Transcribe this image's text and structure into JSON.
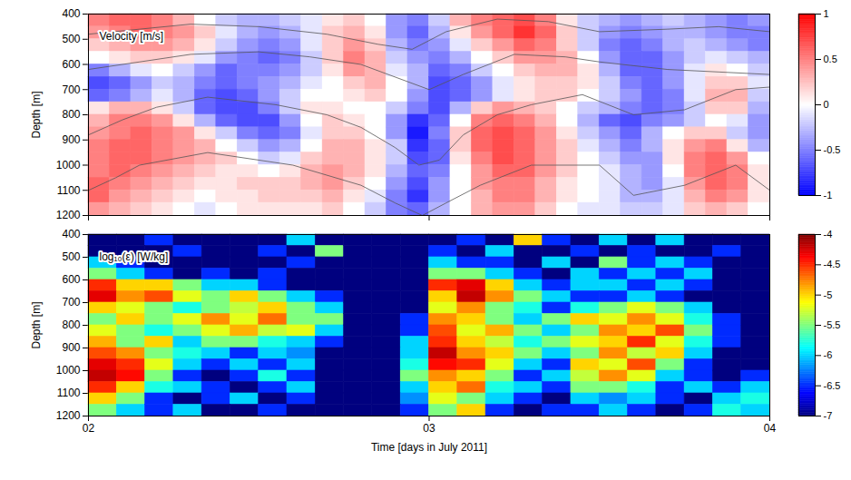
{
  "chart_data": [
    {
      "type": "heatmap",
      "title": "Velocity [m/s]",
      "y_label": "Depth [m]",
      "xlim": [
        2,
        4
      ],
      "xticks": [
        {
          "value": 2,
          "label": "02"
        },
        {
          "value": 3,
          "label": "03"
        },
        {
          "value": 4,
          "label": "04"
        }
      ],
      "ylim": [
        400,
        1200
      ],
      "yticks": [
        400,
        500,
        600,
        700,
        800,
        900,
        1000,
        1100,
        1200
      ],
      "tick_labels": "y",
      "x_edges": [
        2,
        2.0625,
        2.125,
        2.1875,
        2.25,
        2.3125,
        2.375,
        2.4375,
        2.5,
        2.5625,
        2.625,
        2.6875,
        2.75,
        2.8125,
        2.875,
        2.9375,
        3,
        3.0625,
        3.125,
        3.1875,
        3.25,
        3.3125,
        3.375,
        3.4375,
        3.5,
        3.5625,
        3.625,
        3.6875,
        3.75,
        3.8125,
        3.875,
        3.9375,
        4
      ],
      "y_edges": [
        400,
        450,
        500,
        550,
        600,
        650,
        700,
        750,
        800,
        850,
        900,
        950,
        1000,
        1050,
        1100,
        1150,
        1200
      ],
      "values": [
        [
          0.5,
          0.6,
          0.6,
          0.5,
          0.3,
          0.0,
          -0.2,
          -0.3,
          -0.3,
          -0.2,
          -0.1,
          0.1,
          0.2,
          0.0,
          -0.4,
          -0.5,
          -0.2,
          0.3,
          0.5,
          0.6,
          0.7,
          0.5,
          0.1,
          -0.2,
          -0.3,
          -0.4,
          -0.3,
          -0.2,
          -0.3,
          -0.4,
          -0.5,
          -0.4
        ],
        [
          0.4,
          0.5,
          0.6,
          0.5,
          0.4,
          0.2,
          -0.1,
          -0.3,
          -0.4,
          -0.3,
          -0.1,
          0.2,
          0.3,
          0.1,
          -0.4,
          -0.6,
          -0.3,
          0.1,
          0.4,
          0.6,
          0.8,
          0.6,
          0.2,
          -0.2,
          -0.4,
          -0.5,
          -0.4,
          -0.3,
          -0.3,
          -0.4,
          -0.5,
          -0.5
        ],
        [
          0.2,
          0.3,
          0.4,
          0.4,
          0.3,
          0.1,
          -0.2,
          -0.4,
          -0.5,
          -0.4,
          -0.1,
          0.2,
          0.4,
          0.2,
          -0.3,
          -0.5,
          -0.4,
          -0.1,
          0.2,
          0.4,
          0.6,
          0.5,
          0.2,
          -0.2,
          -0.5,
          -0.6,
          -0.5,
          -0.3,
          -0.2,
          -0.3,
          -0.4,
          -0.5
        ],
        [
          0.0,
          0.1,
          0.2,
          0.2,
          0.1,
          -0.1,
          -0.4,
          -0.5,
          -0.6,
          -0.5,
          -0.2,
          0.2,
          0.5,
          0.3,
          -0.2,
          -0.4,
          -0.5,
          -0.3,
          0.0,
          0.2,
          0.4,
          0.4,
          0.3,
          0.0,
          -0.4,
          -0.6,
          -0.6,
          -0.4,
          -0.2,
          -0.1,
          -0.2,
          -0.3
        ],
        [
          -0.5,
          -0.3,
          -0.1,
          0.0,
          -0.2,
          -0.4,
          -0.6,
          -0.5,
          -0.5,
          -0.4,
          -0.2,
          0.1,
          0.4,
          0.3,
          -0.1,
          -0.3,
          -0.6,
          -0.5,
          -0.2,
          0.0,
          0.2,
          0.3,
          0.3,
          0.1,
          -0.3,
          -0.6,
          -0.6,
          -0.4,
          -0.1,
          0.1,
          0.0,
          -0.2
        ],
        [
          -0.7,
          -0.6,
          -0.4,
          -0.2,
          -0.3,
          -0.5,
          -0.6,
          -0.5,
          -0.4,
          -0.3,
          -0.1,
          0.0,
          0.2,
          0.3,
          0.0,
          -0.3,
          -0.7,
          -0.6,
          -0.4,
          -0.1,
          0.1,
          0.2,
          0.2,
          0.1,
          -0.2,
          -0.5,
          -0.6,
          -0.4,
          -0.1,
          0.2,
          0.2,
          -0.1
        ],
        [
          -0.6,
          -0.5,
          -0.3,
          -0.1,
          -0.3,
          -0.6,
          -0.7,
          -0.6,
          -0.4,
          -0.2,
          0.0,
          0.0,
          0.1,
          0.2,
          0.0,
          -0.4,
          -0.7,
          -0.6,
          -0.4,
          -0.1,
          0.1,
          0.2,
          0.2,
          0.0,
          -0.2,
          -0.4,
          -0.6,
          -0.5,
          -0.1,
          0.3,
          0.3,
          -0.2
        ],
        [
          0.1,
          0.3,
          0.3,
          0.1,
          -0.2,
          -0.6,
          -0.7,
          -0.7,
          -0.5,
          -0.2,
          0.1,
          0.1,
          0.0,
          0.0,
          -0.2,
          -0.5,
          -0.7,
          -0.3,
          0.2,
          0.4,
          0.3,
          0.2,
          0.0,
          -0.2,
          -0.3,
          -0.5,
          -0.6,
          -0.5,
          -0.2,
          0.2,
          0.2,
          -0.3
        ],
        [
          0.3,
          0.5,
          0.5,
          0.4,
          0.1,
          -0.3,
          -0.6,
          -0.7,
          -0.7,
          -0.4,
          0.0,
          0.2,
          0.1,
          0.0,
          -0.4,
          -0.8,
          -0.6,
          0.0,
          0.5,
          0.6,
          0.5,
          0.3,
          0.0,
          -0.3,
          -0.6,
          -0.7,
          -0.5,
          -0.4,
          -0.2,
          0.0,
          -0.1,
          -0.4
        ],
        [
          0.4,
          0.5,
          0.6,
          0.5,
          0.4,
          0.1,
          -0.2,
          -0.5,
          -0.6,
          -0.5,
          -0.1,
          0.2,
          0.2,
          0.0,
          -0.4,
          -0.9,
          -0.5,
          0.2,
          0.6,
          0.7,
          0.6,
          0.4,
          0.1,
          -0.2,
          -0.4,
          -0.6,
          -0.3,
          0.0,
          0.2,
          0.2,
          -0.2,
          -0.4
        ],
        [
          0.5,
          0.6,
          0.6,
          0.5,
          0.4,
          0.3,
          0.0,
          -0.2,
          -0.4,
          -0.3,
          0.0,
          0.3,
          0.3,
          0.1,
          -0.2,
          -0.8,
          -0.6,
          0.2,
          0.6,
          0.7,
          0.6,
          0.4,
          0.2,
          -0.1,
          -0.3,
          -0.5,
          -0.3,
          0.1,
          0.4,
          0.5,
          0.1,
          -0.3
        ],
        [
          0.5,
          0.6,
          0.6,
          0.5,
          0.4,
          0.3,
          0.2,
          0.0,
          -0.2,
          -0.1,
          0.2,
          0.3,
          0.3,
          0.1,
          -0.2,
          -0.7,
          -0.6,
          0.1,
          0.5,
          0.7,
          0.6,
          0.4,
          0.2,
          0.0,
          -0.2,
          -0.4,
          -0.4,
          0.1,
          0.5,
          0.6,
          0.4,
          0.0
        ],
        [
          0.5,
          0.6,
          0.5,
          0.4,
          0.3,
          0.2,
          0.1,
          0.1,
          0.0,
          0.1,
          0.3,
          0.4,
          0.3,
          0.1,
          -0.3,
          -0.6,
          -0.5,
          0.0,
          0.4,
          0.6,
          0.6,
          0.4,
          0.2,
          0.0,
          -0.1,
          -0.3,
          -0.4,
          0.0,
          0.5,
          0.6,
          0.5,
          0.1
        ],
        [
          0.6,
          0.5,
          0.4,
          0.3,
          0.2,
          0.1,
          0.1,
          0.2,
          0.2,
          0.2,
          0.3,
          0.4,
          0.2,
          0.0,
          -0.4,
          -0.7,
          -0.4,
          0.0,
          0.4,
          0.5,
          0.5,
          0.3,
          0.1,
          0.0,
          -0.1,
          -0.3,
          -0.4,
          -0.1,
          0.4,
          0.6,
          0.5,
          0.1
        ],
        [
          0.6,
          0.4,
          0.3,
          0.2,
          0.1,
          0.0,
          0.1,
          0.1,
          0.2,
          0.2,
          0.2,
          0.3,
          0.1,
          -0.1,
          -0.5,
          -0.8,
          -0.4,
          0.0,
          0.3,
          0.5,
          0.5,
          0.3,
          0.1,
          0.0,
          -0.1,
          -0.3,
          -0.3,
          -0.1,
          0.3,
          0.5,
          0.4,
          0.1
        ],
        [
          0.4,
          0.3,
          0.2,
          0.1,
          0.0,
          -0.1,
          0.0,
          0.1,
          0.1,
          0.1,
          0.1,
          0.2,
          0.0,
          -0.2,
          -0.5,
          -0.6,
          -0.3,
          0.0,
          0.3,
          0.4,
          0.4,
          0.2,
          0.0,
          -0.1,
          -0.1,
          -0.2,
          -0.2,
          -0.1,
          0.2,
          0.3,
          0.2,
          0.0
        ]
      ],
      "colorbar": {
        "range": [
          -1,
          1
        ],
        "ticks": [
          -1,
          -0.5,
          0,
          0.5,
          1
        ]
      },
      "contours": [
        {
          "x": [
            2,
            2.15,
            2.3,
            2.5,
            2.7,
            2.85,
            2.95,
            3.05,
            3.2,
            3.35,
            3.5,
            3.7,
            3.85,
            4
          ],
          "y": [
            480,
            460,
            440,
            450,
            480,
            520,
            540,
            470,
            420,
            430,
            470,
            460,
            450,
            470
          ]
        },
        {
          "x": [
            2,
            2.15,
            2.3,
            2.5,
            2.65,
            2.8,
            2.92,
            3,
            3.1,
            3.25,
            3.4,
            3.5,
            3.7,
            3.85,
            4
          ],
          "y": [
            620,
            590,
            560,
            550,
            570,
            600,
            660,
            700,
            640,
            560,
            570,
            590,
            620,
            630,
            640
          ]
        },
        {
          "x": [
            2,
            2.1,
            2.2,
            2.35,
            2.55,
            2.7,
            2.8,
            2.9,
            2.97,
            3.03,
            3.1,
            3.2,
            3.3,
            3.45,
            3.6,
            3.75,
            3.9,
            4
          ],
          "y": [
            880,
            820,
            770,
            730,
            760,
            800,
            850,
            930,
            1000,
            980,
            880,
            800,
            760,
            720,
            800,
            780,
            700,
            690
          ]
        },
        {
          "x": [
            2,
            2.08,
            2.15,
            2.35,
            2.6,
            2.8,
            2.9,
            2.98,
            3.05,
            3.15,
            3.3,
            3.5,
            3.6,
            3.75,
            3.9,
            4
          ],
          "y": [
            1100,
            1050,
            1000,
            950,
            1000,
            1080,
            1150,
            1200,
            1150,
            1080,
            1000,
            1000,
            1120,
            1080,
            1000,
            1100
          ]
        }
      ]
    },
    {
      "type": "heatmap",
      "title": "log₁₀(ε) [W/kg]",
      "x_label": "Time [days in July 2011]",
      "y_label": "Depth [m]",
      "xlim": [
        2,
        4
      ],
      "xticks": [
        {
          "value": 2,
          "label": "02"
        },
        {
          "value": 3,
          "label": "03"
        },
        {
          "value": 4,
          "label": "04"
        }
      ],
      "ylim": [
        400,
        1200
      ],
      "yticks": [
        400,
        500,
        600,
        700,
        800,
        900,
        1000,
        1100,
        1200
      ],
      "x_edges": [
        2,
        2.0833,
        2.1667,
        2.25,
        2.3333,
        2.4167,
        2.5,
        2.5833,
        2.6667,
        2.75,
        2.8333,
        2.9167,
        3,
        3.0833,
        3.1667,
        3.25,
        3.3333,
        3.4167,
        3.5,
        3.5833,
        3.6667,
        3.75,
        3.8333,
        3.9167,
        4
      ],
      "y_edges": [
        400,
        450,
        500,
        550,
        600,
        650,
        700,
        750,
        800,
        850,
        900,
        950,
        1000,
        1050,
        1100,
        1150,
        1200
      ],
      "values": [
        [
          -7,
          -7,
          -6.5,
          -7,
          -7,
          -7,
          -7,
          -6,
          -7,
          -7,
          -7,
          -7,
          -7,
          -6.5,
          -7,
          -5,
          -6.5,
          -7,
          -6,
          -7,
          -6,
          -7,
          -7,
          -7
        ],
        [
          -7,
          -7,
          -7,
          -6.5,
          -7,
          -7,
          -6.5,
          -7,
          -5.5,
          -7,
          -7,
          -7,
          -6.5,
          -7,
          -6,
          -7,
          -7,
          -6.5,
          -7,
          -6.5,
          -7,
          -7,
          -6.5,
          -7
        ],
        [
          -6,
          -6.5,
          -7,
          -7,
          -7,
          -7,
          -7,
          -6.5,
          -7,
          -7,
          -7,
          -7,
          -6,
          -6.5,
          -6.5,
          -7,
          -6,
          -7,
          -5.5,
          -6.5,
          -6,
          -6.5,
          -7,
          -7
        ],
        [
          -5.5,
          -6,
          -6.5,
          -7,
          -6.5,
          -7,
          -6.5,
          -7,
          -7,
          -7,
          -7,
          -7,
          -5.5,
          -5.5,
          -6,
          -6.5,
          -7,
          -6,
          -6.5,
          -6,
          -6.5,
          -6,
          -7,
          -7
        ],
        [
          -4.5,
          -5,
          -5,
          -5.5,
          -6,
          -6,
          -6.5,
          -7,
          -7,
          -7,
          -7,
          -7,
          -4.5,
          -4.3,
          -5,
          -6,
          -6.5,
          -6,
          -6,
          -6.5,
          -6,
          -6.5,
          -7,
          -7
        ],
        [
          -4.3,
          -4.8,
          -4.6,
          -5.2,
          -5.5,
          -5,
          -5.5,
          -6,
          -6.5,
          -7,
          -7,
          -7,
          -5,
          -4.2,
          -4.8,
          -5.5,
          -6,
          -6.5,
          -6.5,
          -6,
          -6.5,
          -7,
          -7,
          -7
        ],
        [
          -5,
          -5.2,
          -5.5,
          -5.8,
          -5.5,
          -5.3,
          -5,
          -5.5,
          -6,
          -7,
          -7,
          -7,
          -5.2,
          -4.8,
          -5.5,
          -5.8,
          -6.5,
          -5.8,
          -5.5,
          -5.2,
          -5.5,
          -6,
          -7,
          -7
        ],
        [
          -5.5,
          -5,
          -5.5,
          -5.2,
          -4.8,
          -5.2,
          -4.7,
          -5.5,
          -5.5,
          -7,
          -7,
          -6.5,
          -4.8,
          -5,
          -5.5,
          -6,
          -5.5,
          -5,
          -5.2,
          -4.8,
          -5.2,
          -5.8,
          -6.5,
          -7
        ],
        [
          -5.2,
          -5.5,
          -5.8,
          -5.5,
          -5.2,
          -4.9,
          -5.3,
          -5.2,
          -6,
          -7,
          -7,
          -6.5,
          -4.6,
          -5.2,
          -4.9,
          -5.5,
          -6,
          -5.5,
          -4.8,
          -5,
          -4.6,
          -5.5,
          -6.5,
          -7
        ],
        [
          -4.9,
          -5.5,
          -5,
          -6,
          -5.5,
          -5.5,
          -5.8,
          -6,
          -6.5,
          -7,
          -7,
          -6,
          -4.5,
          -5,
          -5.3,
          -5.8,
          -5.5,
          -5.2,
          -5,
          -4.5,
          -5.2,
          -5.8,
          -6.5,
          -7
        ],
        [
          -4.6,
          -4.8,
          -5.5,
          -5.8,
          -6,
          -6.5,
          -6,
          -6.2,
          -7,
          -7,
          -7,
          -6,
          -4.2,
          -4.8,
          -5,
          -5.5,
          -6,
          -5.5,
          -4.8,
          -5.3,
          -5,
          -6,
          -7,
          -7
        ],
        [
          -4.3,
          -4.5,
          -5.2,
          -6,
          -6.5,
          -6,
          -6.5,
          -6,
          -7,
          -7,
          -7,
          -5.8,
          -4.4,
          -4.5,
          -5.2,
          -6,
          -6.5,
          -5,
          -5.2,
          -4.6,
          -5.5,
          -6.5,
          -7,
          -7
        ],
        [
          -4.2,
          -4.4,
          -5.5,
          -6.5,
          -7,
          -6.5,
          -5.8,
          -6.5,
          -7,
          -7,
          -7,
          -5.5,
          -4.8,
          -5,
          -5.5,
          -6.5,
          -6,
          -5.3,
          -4.8,
          -5.2,
          -6,
          -6.5,
          -7,
          -6.5
        ],
        [
          -4.5,
          -5,
          -5.8,
          -6,
          -6.5,
          -7,
          -6.5,
          -6,
          -7,
          -7,
          -7,
          -6,
          -5,
          -4.7,
          -5.8,
          -6,
          -6.5,
          -5.5,
          -5.5,
          -5.8,
          -6.5,
          -6,
          -6.5,
          -6
        ],
        [
          -5,
          -5.5,
          -6.5,
          -7,
          -6.5,
          -6,
          -7,
          -6.5,
          -7,
          -7,
          -7,
          -6.2,
          -5.2,
          -5.5,
          -6,
          -6.5,
          -7,
          -6,
          -6.2,
          -6,
          -6.5,
          -7,
          -6,
          -5.8
        ],
        [
          -5.5,
          -6,
          -6.5,
          -6,
          -7,
          -7,
          -6.5,
          -7,
          -7,
          -7,
          -7,
          -6.5,
          -5.5,
          -5,
          -6.5,
          -7,
          -6.5,
          -6.5,
          -6,
          -6.5,
          -7,
          -6.5,
          -5.8,
          -6
        ]
      ],
      "colorbar": {
        "range": [
          -7,
          -4
        ],
        "ticks": [
          -7,
          -6.5,
          -6,
          -5.5,
          -5,
          -4.5,
          -4
        ]
      }
    }
  ]
}
